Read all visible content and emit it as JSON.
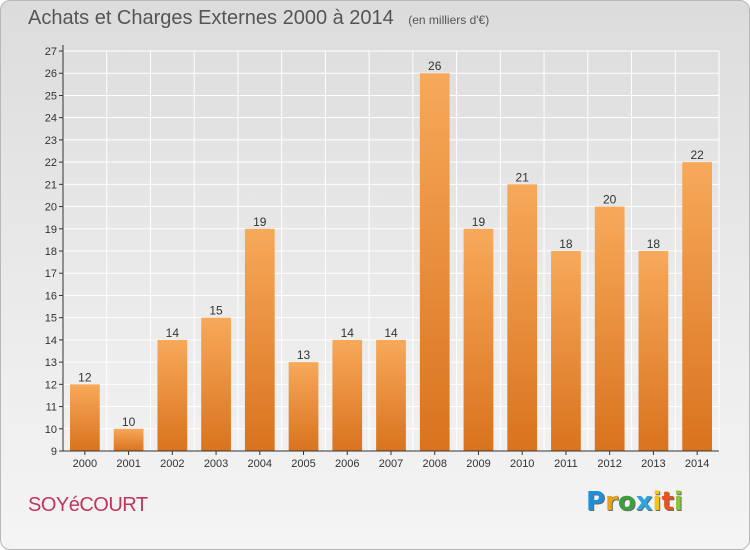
{
  "header": {
    "title": "Achats et Charges Externes 2000 à 2014",
    "subtitle": "(en milliers d'€)"
  },
  "footer": {
    "commune": "SOYéCOURT",
    "logo": [
      "P",
      "r",
      "o",
      "x",
      "i",
      "t",
      "i"
    ],
    "logo_colors": [
      "#1f8fd6",
      "#e7a318",
      "#3aa13a",
      "#2ba6de",
      "#f2c318",
      "#e65422",
      "#8ac43f"
    ]
  },
  "colors": {
    "bar_top": "#f7a95a",
    "bar_bottom": "#d9731e",
    "axis": "#333333",
    "grid": "#ffffff",
    "text": "#333333"
  },
  "chart_data": {
    "type": "bar",
    "categories": [
      "2000",
      "2001",
      "2002",
      "2003",
      "2004",
      "2005",
      "2006",
      "2007",
      "2008",
      "2009",
      "2010",
      "2011",
      "2012",
      "2013",
      "2014"
    ],
    "values": [
      12,
      10,
      14,
      15,
      19,
      13,
      14,
      14,
      26,
      19,
      21,
      18,
      20,
      18,
      22
    ],
    "ylim": [
      9,
      27
    ],
    "yticks": [
      9,
      10,
      11,
      12,
      13,
      14,
      15,
      16,
      17,
      18,
      19,
      20,
      21,
      22,
      23,
      24,
      25,
      26,
      27
    ],
    "grid": true,
    "data_labels": true
  }
}
